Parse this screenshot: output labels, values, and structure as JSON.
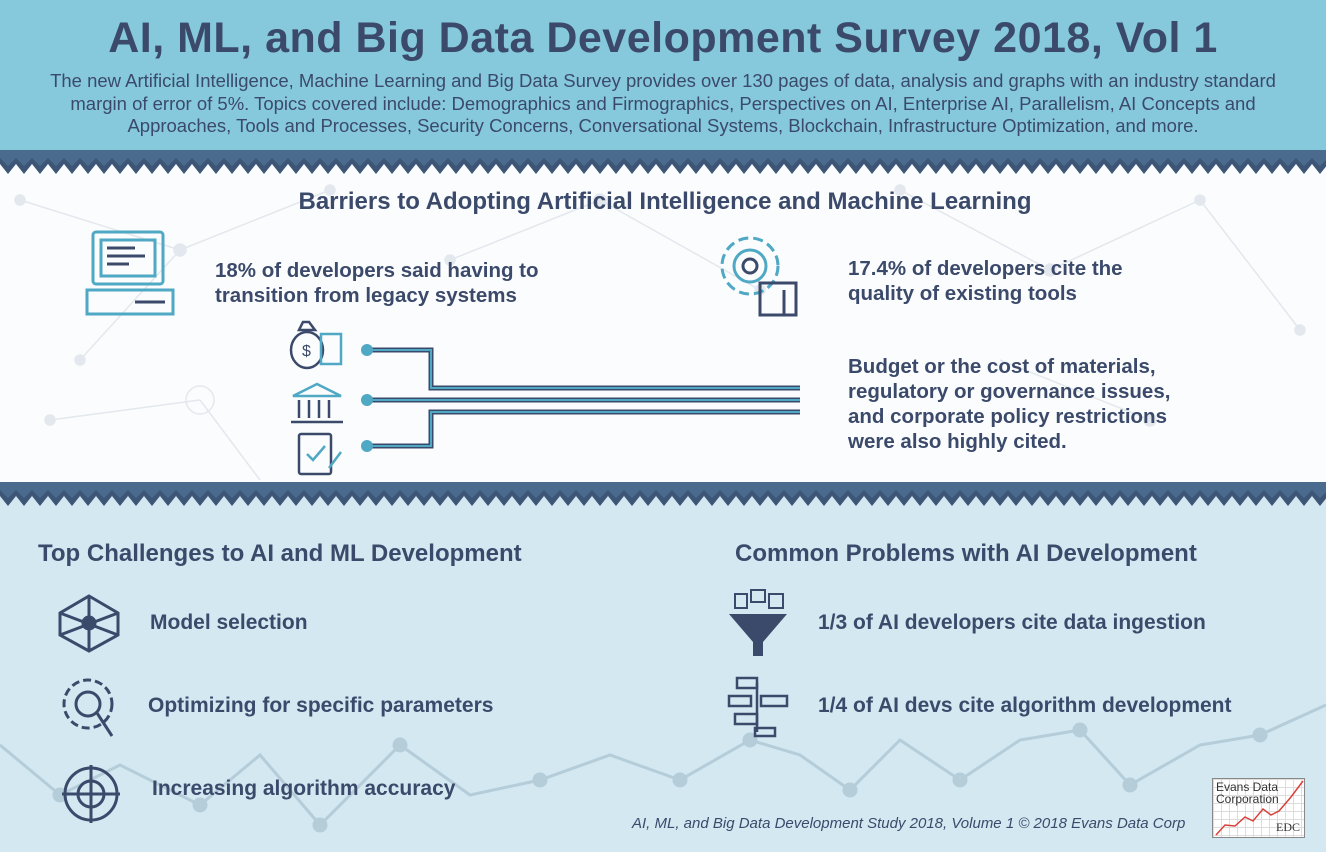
{
  "header": {
    "title": "AI, ML, and Big Data Development Survey 2018, Vol 1",
    "subtitle": "The new Artificial Intelligence, Machine Learning and Big Data Survey provides over 130 pages of data, analysis and graphs with an industry standard margin of error of 5%.  Topics covered include: Demographics and Firmographics, Perspectives on AI, Enterprise AI, Parallelism, AI Concepts and Approaches, Tools and Processes, Security Concerns, Conversational Systems, Blockchain, Infrastructure Optimization, and more."
  },
  "barriers": {
    "heading": "Barriers to Adopting Artificial Intelligence and Machine Learning",
    "legacy": {
      "line1": "18% of developers said having to",
      "line2": "transition from legacy systems",
      "icon": "computer-icon"
    },
    "tools": {
      "line1": "17.4% of developers cite the",
      "line2": "quality of existing tools",
      "icon": "gear-hand-icon"
    },
    "other": {
      "lines": [
        "Budget or the cost of materials,",
        "regulatory or governance issues,",
        "and corporate policy restrictions",
        "were also highly cited."
      ],
      "icons": [
        "money-bag-icon",
        "government-building-icon",
        "policy-document-icon"
      ]
    }
  },
  "challenges": {
    "heading": "Top Challenges to AI and ML Development",
    "items": [
      {
        "label": "Model selection",
        "icon": "network-icon"
      },
      {
        "label": "Optimizing for specific parameters",
        "icon": "gear-magnifier-icon"
      },
      {
        "label": "Increasing algorithm accuracy",
        "icon": "target-icon"
      }
    ]
  },
  "problems": {
    "heading": "Common Problems with AI Development",
    "items": [
      {
        "label": "1/3 of AI developers cite data ingestion",
        "icon": "funnel-icon"
      },
      {
        "label": "1/4 of AI devs cite algorithm development",
        "icon": "flowchart-icon"
      }
    ]
  },
  "footer": {
    "text": "AI, ML, and Big Data Development Study 2018, Volume 1 © 2018 Evans Data Corp",
    "logo_line1": "Evans Data",
    "logo_line2": "Corporation",
    "logo_abbr": "EDC"
  },
  "colors": {
    "header_bg": "#86c9dc",
    "navy": "#3b4a6b",
    "accent": "#4fa8c4",
    "bottom_bg": "#d3e8f1"
  }
}
